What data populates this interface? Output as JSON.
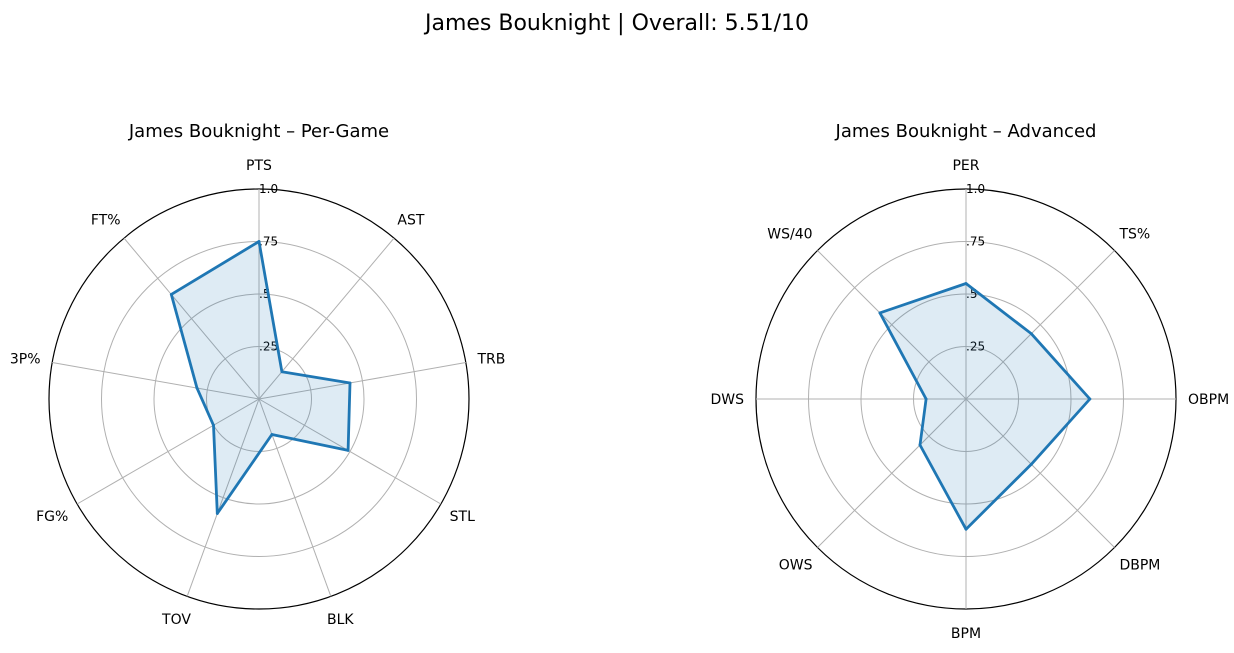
{
  "figure": {
    "title": "James Bouknight | Overall: 5.51/10",
    "line_color": "#1f77b4",
    "fill_color": "#1f77b4",
    "grid_color": "#b0b0b0"
  },
  "chart_data": [
    {
      "type": "radar",
      "title": "James Bouknight – Per-Game",
      "axes": [
        "PTS",
        "AST",
        "TRB",
        "STL",
        "BLK",
        "TOV",
        "FG%",
        "3P%",
        "FT%"
      ],
      "values": [
        0.75,
        0.17,
        0.44,
        0.49,
        0.18,
        0.58,
        0.25,
        0.3,
        0.65
      ],
      "r_range": [
        0,
        1
      ],
      "r_ticks": [
        0.25,
        0.5,
        0.75,
        1.0
      ],
      "r_tick_labels": [
        ".25",
        ".5",
        ".75",
        "1.0"
      ],
      "grid": true
    },
    {
      "type": "radar",
      "title": "James Bouknight – Advanced",
      "axes": [
        "PER",
        "TS%",
        "OBPM",
        "DBPM",
        "BPM",
        "OWS",
        "DWS",
        "WS/40"
      ],
      "values": [
        0.55,
        0.44,
        0.59,
        0.44,
        0.62,
        0.31,
        0.19,
        0.58
      ],
      "r_range": [
        0,
        1
      ],
      "r_ticks": [
        0.25,
        0.5,
        0.75,
        1.0
      ],
      "r_tick_labels": [
        ".25",
        ".5",
        ".75",
        "1.0"
      ],
      "grid": true
    }
  ]
}
